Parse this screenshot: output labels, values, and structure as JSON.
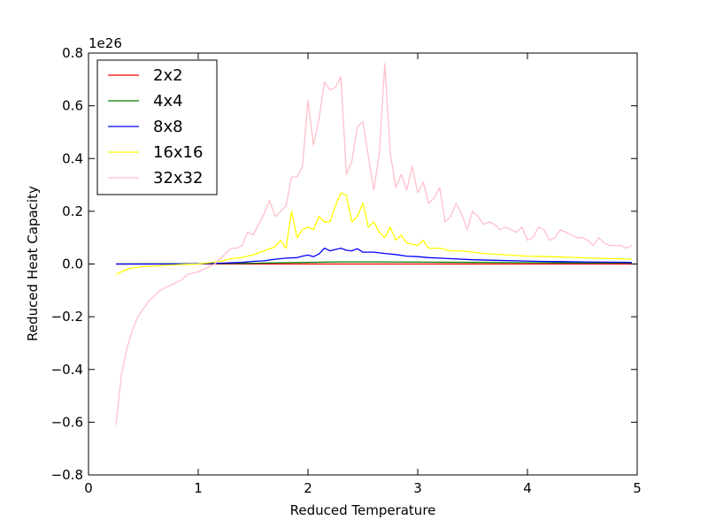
{
  "chart_data": {
    "type": "line",
    "xlabel": "Reduced Temperature",
    "ylabel": "Reduced Heat Capacity",
    "offset_label": "1e26",
    "xlim": [
      0,
      5
    ],
    "ylim": [
      -0.8,
      0.8
    ],
    "xticks": [
      0,
      1,
      2,
      3,
      4,
      5
    ],
    "xtick_labels": [
      "0",
      "1",
      "2",
      "3",
      "4",
      "5"
    ],
    "yticks": [
      -0.8,
      -0.6,
      -0.4,
      -0.2,
      0.0,
      0.2,
      0.4,
      0.6,
      0.8
    ],
    "ytick_labels": [
      "−0.8",
      "−0.6",
      "−0.4",
      "−0.2",
      "0.0",
      "0.2",
      "0.4",
      "0.6",
      "0.8"
    ],
    "legend_position": "upper-left",
    "grid": false,
    "series": [
      {
        "name": "2x2",
        "color": "#ff0000",
        "points": [
          [
            0.25,
            0.0
          ],
          [
            1.0,
            0.0
          ],
          [
            2.0,
            0.0
          ],
          [
            3.0,
            0.0
          ],
          [
            4.0,
            0.0
          ],
          [
            4.95,
            0.0
          ]
        ]
      },
      {
        "name": "4x4",
        "color": "#008000",
        "points": [
          [
            0.25,
            0.0
          ],
          [
            1.0,
            0.001
          ],
          [
            1.5,
            0.003
          ],
          [
            2.0,
            0.006
          ],
          [
            2.3,
            0.008
          ],
          [
            2.6,
            0.008
          ],
          [
            3.0,
            0.007
          ],
          [
            3.5,
            0.006
          ],
          [
            4.0,
            0.005
          ],
          [
            4.5,
            0.004
          ],
          [
            4.95,
            0.004
          ]
        ]
      },
      {
        "name": "8x8",
        "color": "#0000ff",
        "points": [
          [
            0.25,
            0.0
          ],
          [
            0.5,
            0.0
          ],
          [
            0.75,
            0.0
          ],
          [
            1.0,
            0.001
          ],
          [
            1.2,
            0.003
          ],
          [
            1.4,
            0.006
          ],
          [
            1.5,
            0.01
          ],
          [
            1.6,
            0.012
          ],
          [
            1.7,
            0.018
          ],
          [
            1.8,
            0.022
          ],
          [
            1.9,
            0.024
          ],
          [
            1.95,
            0.03
          ],
          [
            2.0,
            0.034
          ],
          [
            2.05,
            0.028
          ],
          [
            2.1,
            0.038
          ],
          [
            2.15,
            0.06
          ],
          [
            2.2,
            0.05
          ],
          [
            2.25,
            0.055
          ],
          [
            2.3,
            0.06
          ],
          [
            2.35,
            0.052
          ],
          [
            2.4,
            0.05
          ],
          [
            2.45,
            0.058
          ],
          [
            2.5,
            0.045
          ],
          [
            2.6,
            0.045
          ],
          [
            2.7,
            0.04
          ],
          [
            2.8,
            0.036
          ],
          [
            2.9,
            0.03
          ],
          [
            3.0,
            0.028
          ],
          [
            3.1,
            0.024
          ],
          [
            3.2,
            0.022
          ],
          [
            3.3,
            0.02
          ],
          [
            3.5,
            0.016
          ],
          [
            3.7,
            0.014
          ],
          [
            3.9,
            0.012
          ],
          [
            4.1,
            0.01
          ],
          [
            4.3,
            0.009
          ],
          [
            4.5,
            0.008
          ],
          [
            4.7,
            0.007
          ],
          [
            4.95,
            0.006
          ]
        ]
      },
      {
        "name": "16x16",
        "color": "#ffff00",
        "points": [
          [
            0.25,
            -0.04
          ],
          [
            0.3,
            -0.03
          ],
          [
            0.35,
            -0.02
          ],
          [
            0.4,
            -0.015
          ],
          [
            0.5,
            -0.01
          ],
          [
            0.6,
            -0.008
          ],
          [
            0.7,
            -0.005
          ],
          [
            0.8,
            -0.003
          ],
          [
            0.9,
            -0.001
          ],
          [
            1.0,
            0.0
          ],
          [
            1.1,
            0.005
          ],
          [
            1.2,
            0.01
          ],
          [
            1.3,
            0.02
          ],
          [
            1.4,
            0.025
          ],
          [
            1.5,
            0.035
          ],
          [
            1.6,
            0.05
          ],
          [
            1.7,
            0.065
          ],
          [
            1.75,
            0.09
          ],
          [
            1.8,
            0.06
          ],
          [
            1.85,
            0.2
          ],
          [
            1.9,
            0.1
          ],
          [
            1.95,
            0.13
          ],
          [
            2.0,
            0.14
          ],
          [
            2.05,
            0.13
          ],
          [
            2.1,
            0.18
          ],
          [
            2.15,
            0.16
          ],
          [
            2.2,
            0.16
          ],
          [
            2.25,
            0.22
          ],
          [
            2.3,
            0.27
          ],
          [
            2.35,
            0.26
          ],
          [
            2.4,
            0.16
          ],
          [
            2.45,
            0.18
          ],
          [
            2.5,
            0.23
          ],
          [
            2.55,
            0.14
          ],
          [
            2.6,
            0.16
          ],
          [
            2.65,
            0.12
          ],
          [
            2.7,
            0.1
          ],
          [
            2.75,
            0.14
          ],
          [
            2.8,
            0.09
          ],
          [
            2.85,
            0.11
          ],
          [
            2.9,
            0.08
          ],
          [
            3.0,
            0.07
          ],
          [
            3.05,
            0.09
          ],
          [
            3.1,
            0.06
          ],
          [
            3.2,
            0.06
          ],
          [
            3.3,
            0.05
          ],
          [
            3.4,
            0.05
          ],
          [
            3.5,
            0.045
          ],
          [
            3.6,
            0.04
          ],
          [
            3.8,
            0.035
          ],
          [
            4.0,
            0.03
          ],
          [
            4.2,
            0.028
          ],
          [
            4.4,
            0.025
          ],
          [
            4.6,
            0.022
          ],
          [
            4.8,
            0.02
          ],
          [
            4.95,
            0.018
          ]
        ]
      },
      {
        "name": "32x32",
        "color": "#ffc0cb",
        "points": [
          [
            0.25,
            -0.61
          ],
          [
            0.3,
            -0.42
          ],
          [
            0.35,
            -0.32
          ],
          [
            0.4,
            -0.25
          ],
          [
            0.45,
            -0.2
          ],
          [
            0.5,
            -0.17
          ],
          [
            0.55,
            -0.14
          ],
          [
            0.6,
            -0.12
          ],
          [
            0.65,
            -0.1
          ],
          [
            0.7,
            -0.09
          ],
          [
            0.75,
            -0.08
          ],
          [
            0.8,
            -0.07
          ],
          [
            0.85,
            -0.06
          ],
          [
            0.9,
            -0.04
          ],
          [
            0.95,
            -0.035
          ],
          [
            1.0,
            -0.03
          ],
          [
            1.05,
            -0.02
          ],
          [
            1.1,
            -0.01
          ],
          [
            1.15,
            0.0
          ],
          [
            1.2,
            0.02
          ],
          [
            1.25,
            0.04
          ],
          [
            1.3,
            0.06
          ],
          [
            1.35,
            0.06
          ],
          [
            1.4,
            0.07
          ],
          [
            1.45,
            0.12
          ],
          [
            1.5,
            0.11
          ],
          [
            1.55,
            0.15
          ],
          [
            1.6,
            0.19
          ],
          [
            1.65,
            0.24
          ],
          [
            1.7,
            0.18
          ],
          [
            1.75,
            0.2
          ],
          [
            1.8,
            0.22
          ],
          [
            1.85,
            0.33
          ],
          [
            1.9,
            0.33
          ],
          [
            1.95,
            0.37
          ],
          [
            2.0,
            0.62
          ],
          [
            2.05,
            0.45
          ],
          [
            2.1,
            0.55
          ],
          [
            2.15,
            0.69
          ],
          [
            2.2,
            0.66
          ],
          [
            2.25,
            0.67
          ],
          [
            2.3,
            0.71
          ],
          [
            2.35,
            0.34
          ],
          [
            2.4,
            0.39
          ],
          [
            2.45,
            0.52
          ],
          [
            2.5,
            0.54
          ],
          [
            2.55,
            0.41
          ],
          [
            2.6,
            0.28
          ],
          [
            2.65,
            0.42
          ],
          [
            2.7,
            0.76
          ],
          [
            2.75,
            0.42
          ],
          [
            2.8,
            0.29
          ],
          [
            2.85,
            0.34
          ],
          [
            2.9,
            0.28
          ],
          [
            2.95,
            0.37
          ],
          [
            3.0,
            0.27
          ],
          [
            3.05,
            0.31
          ],
          [
            3.1,
            0.23
          ],
          [
            3.15,
            0.25
          ],
          [
            3.2,
            0.29
          ],
          [
            3.25,
            0.16
          ],
          [
            3.3,
            0.18
          ],
          [
            3.35,
            0.23
          ],
          [
            3.4,
            0.19
          ],
          [
            3.45,
            0.13
          ],
          [
            3.5,
            0.2
          ],
          [
            3.55,
            0.18
          ],
          [
            3.6,
            0.15
          ],
          [
            3.65,
            0.16
          ],
          [
            3.7,
            0.15
          ],
          [
            3.75,
            0.13
          ],
          [
            3.8,
            0.14
          ],
          [
            3.85,
            0.13
          ],
          [
            3.9,
            0.12
          ],
          [
            3.95,
            0.14
          ],
          [
            4.0,
            0.09
          ],
          [
            4.05,
            0.1
          ],
          [
            4.1,
            0.14
          ],
          [
            4.15,
            0.13
          ],
          [
            4.2,
            0.09
          ],
          [
            4.25,
            0.1
          ],
          [
            4.3,
            0.13
          ],
          [
            4.35,
            0.12
          ],
          [
            4.4,
            0.11
          ],
          [
            4.45,
            0.1
          ],
          [
            4.5,
            0.1
          ],
          [
            4.55,
            0.09
          ],
          [
            4.6,
            0.07
          ],
          [
            4.65,
            0.1
          ],
          [
            4.7,
            0.08
          ],
          [
            4.75,
            0.07
          ],
          [
            4.8,
            0.07
          ],
          [
            4.85,
            0.07
          ],
          [
            4.9,
            0.06
          ],
          [
            4.95,
            0.07
          ]
        ]
      }
    ]
  }
}
